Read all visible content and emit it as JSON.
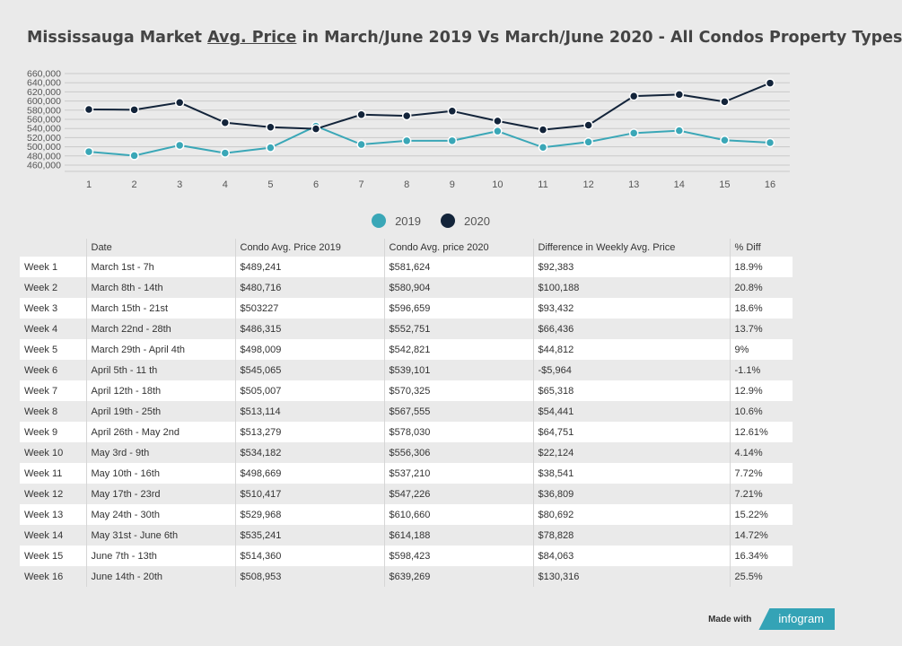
{
  "title": {
    "pre": "Mississauga Market ",
    "underlined": "Avg. Price",
    "post": " in March/June 2019 Vs March/June 2020 - All Condos Property Types"
  },
  "chart_data": {
    "type": "line",
    "x": [
      1,
      2,
      3,
      4,
      5,
      6,
      7,
      8,
      9,
      10,
      11,
      12,
      13,
      14,
      15,
      16
    ],
    "ylim": [
      450000,
      670000
    ],
    "y_ticks": [
      "660,000",
      "640,000",
      "620,000",
      "600,000",
      "580,000",
      "560,000",
      "540,000",
      "520,000",
      "500,000",
      "480,000",
      "460,000"
    ],
    "y_tick_values": [
      660000,
      640000,
      620000,
      600000,
      580000,
      560000,
      540000,
      520000,
      500000,
      480000,
      460000
    ],
    "grid": true,
    "legend_position": "bottom-center",
    "series": [
      {
        "name": "2019",
        "color": "#3aa7b7",
        "values": [
          489241,
          480716,
          503227,
          486315,
          498009,
          545065,
          505007,
          513114,
          513279,
          534182,
          498669,
          510417,
          529968,
          535241,
          514360,
          508953
        ]
      },
      {
        "name": "2020",
        "color": "#13243a",
        "values": [
          581624,
          580904,
          596659,
          552751,
          542821,
          539101,
          570325,
          567555,
          578030,
          556306,
          537210,
          547226,
          610660,
          614188,
          598423,
          639269
        ]
      }
    ]
  },
  "table": {
    "headers": [
      "",
      "Date",
      "Condo Avg. Price 2019",
      "Condo Avg. price 2020",
      "Difference in Weekly Avg. Price",
      "% Diff"
    ],
    "rows": [
      [
        "Week 1",
        "March 1st - 7h",
        "$489,241",
        "$581,624",
        "$92,383",
        "18.9%"
      ],
      [
        "Week 2",
        "March 8th - 14th",
        "$480,716",
        "$580,904",
        "$100,188",
        "20.8%"
      ],
      [
        "Week 3",
        "March 15th - 21st",
        "$503227",
        "$596,659",
        "$93,432",
        "18.6%"
      ],
      [
        "Week 4",
        "March 22nd - 28th",
        "$486,315",
        "$552,751",
        "$66,436",
        "13.7%"
      ],
      [
        "Week 5",
        "March 29th - April 4th",
        "$498,009",
        "$542,821",
        "$44,812",
        "9%"
      ],
      [
        "Week 6",
        "April 5th - 11 th",
        "$545,065",
        "$539,101",
        "-$5,964",
        "-1.1%"
      ],
      [
        "Week 7",
        "April 12th - 18th",
        "$505,007",
        "$570,325",
        "$65,318",
        "12.9%"
      ],
      [
        "Week 8",
        "April 19th - 25th",
        "$513,114",
        "$567,555",
        "$54,441",
        "10.6%"
      ],
      [
        "Week 9",
        "April 26th - May 2nd",
        "$513,279",
        "$578,030",
        "$64,751",
        "12.61%"
      ],
      [
        "Week 10",
        "May 3rd - 9th",
        "$534,182",
        "$556,306",
        "$22,124",
        "4.14%"
      ],
      [
        "Week 11",
        "May 10th - 16th",
        "$498,669",
        "$537,210",
        "$38,541",
        "7.72%"
      ],
      [
        "Week 12",
        "May 17th - 23rd",
        "$510,417",
        "$547,226",
        "$36,809",
        "7.21%"
      ],
      [
        "Week 13",
        "May 24th - 30th",
        "$529,968",
        "$610,660",
        "$80,692",
        "15.22%"
      ],
      [
        "Week 14",
        "May 31st - June 6th",
        "$535,241",
        "$614,188",
        "$78,828",
        "14.72%"
      ],
      [
        "Week 15",
        "June 7th - 13th",
        "$514,360",
        "$598,423",
        "$84,063",
        "16.34%"
      ],
      [
        "Week 16",
        "June 14th - 20th",
        "$508,953",
        "$639,269",
        "$130,316",
        "25.5%"
      ]
    ]
  },
  "footer": {
    "made_with": "Made with",
    "brand": "infogram"
  }
}
